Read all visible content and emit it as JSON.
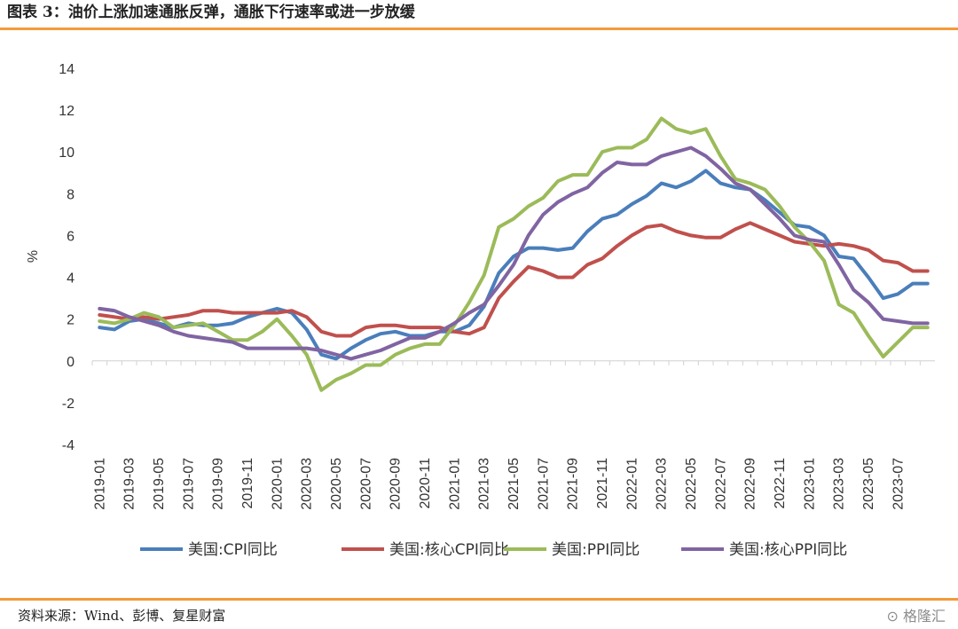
{
  "header": {
    "title": "图表 3：油价上涨加速通胀反弹，通胀下行速率或进一步放缓"
  },
  "footer": {
    "source": "资料来源：Wind、彭博、复星财富",
    "watermark": "格隆汇"
  },
  "chart_data": {
    "type": "line",
    "ylabel": "%",
    "ylim": [
      -4,
      14
    ],
    "yticks": [
      -4,
      -2,
      0,
      2,
      4,
      6,
      8,
      10,
      12,
      14
    ],
    "grid": false,
    "legend_position": "bottom",
    "x": [
      "2019-01",
      "2019-02",
      "2019-03",
      "2019-04",
      "2019-05",
      "2019-06",
      "2019-07",
      "2019-08",
      "2019-09",
      "2019-10",
      "2019-11",
      "2019-12",
      "2020-01",
      "2020-02",
      "2020-03",
      "2020-04",
      "2020-05",
      "2020-06",
      "2020-07",
      "2020-08",
      "2020-09",
      "2020-10",
      "2020-11",
      "2020-12",
      "2021-01",
      "2021-02",
      "2021-03",
      "2021-04",
      "2021-05",
      "2021-06",
      "2021-07",
      "2021-08",
      "2021-09",
      "2021-10",
      "2021-11",
      "2021-12",
      "2022-01",
      "2022-02",
      "2022-03",
      "2022-04",
      "2022-05",
      "2022-06",
      "2022-07",
      "2022-08",
      "2022-09",
      "2022-10",
      "2022-11",
      "2022-12",
      "2023-01",
      "2023-02",
      "2023-03",
      "2023-04",
      "2023-05",
      "2023-06",
      "2023-07",
      "2023-08",
      "2023-09"
    ],
    "x_tick_labels": [
      "2019-01",
      "2019-03",
      "2019-05",
      "2019-07",
      "2019-09",
      "2019-11",
      "2020-01",
      "2020-03",
      "2020-05",
      "2020-07",
      "2020-09",
      "2020-11",
      "2021-01",
      "2021-03",
      "2021-05",
      "2021-07",
      "2021-09",
      "2021-11",
      "2022-01",
      "2022-03",
      "2022-05",
      "2022-07",
      "2022-09",
      "2022-11",
      "2023-01",
      "2023-03",
      "2023-05",
      "2023-07"
    ],
    "series": [
      {
        "name": "美国:CPI同比",
        "color": "#4a7ebb",
        "values": [
          1.6,
          1.5,
          1.9,
          2.0,
          1.8,
          1.6,
          1.8,
          1.7,
          1.7,
          1.8,
          2.1,
          2.3,
          2.5,
          2.3,
          1.5,
          0.3,
          0.1,
          0.6,
          1.0,
          1.3,
          1.4,
          1.2,
          1.2,
          1.4,
          1.4,
          1.7,
          2.6,
          4.2,
          5.0,
          5.4,
          5.4,
          5.3,
          5.4,
          6.2,
          6.8,
          7.0,
          7.5,
          7.9,
          8.5,
          8.3,
          8.6,
          9.1,
          8.5,
          8.3,
          8.2,
          7.7,
          7.1,
          6.5,
          6.4,
          6.0,
          5.0,
          4.9,
          4.0,
          3.0,
          3.2,
          3.7,
          3.7
        ]
      },
      {
        "name": "美国:核心CPI同比",
        "color": "#c0504d",
        "values": [
          2.2,
          2.1,
          2.0,
          2.1,
          2.0,
          2.1,
          2.2,
          2.4,
          2.4,
          2.3,
          2.3,
          2.3,
          2.3,
          2.4,
          2.1,
          1.4,
          1.2,
          1.2,
          1.6,
          1.7,
          1.7,
          1.6,
          1.6,
          1.6,
          1.4,
          1.3,
          1.6,
          3.0,
          3.8,
          4.5,
          4.3,
          4.0,
          4.0,
          4.6,
          4.9,
          5.5,
          6.0,
          6.4,
          6.5,
          6.2,
          6.0,
          5.9,
          5.9,
          6.3,
          6.6,
          6.3,
          6.0,
          5.7,
          5.6,
          5.5,
          5.6,
          5.5,
          5.3,
          4.8,
          4.7,
          4.3,
          4.3
        ]
      },
      {
        "name": "美国:PPI同比",
        "color": "#9bbb59",
        "values": [
          1.9,
          1.8,
          2.0,
          2.3,
          2.1,
          1.6,
          1.7,
          1.8,
          1.4,
          1.0,
          1.0,
          1.4,
          2.0,
          1.2,
          0.3,
          -1.4,
          -0.9,
          -0.6,
          -0.2,
          -0.2,
          0.3,
          0.6,
          0.8,
          0.8,
          1.7,
          2.8,
          4.1,
          6.4,
          6.8,
          7.4,
          7.8,
          8.6,
          8.9,
          8.9,
          10.0,
          10.2,
          10.2,
          10.6,
          11.6,
          11.1,
          10.9,
          11.1,
          9.8,
          8.7,
          8.5,
          8.2,
          7.4,
          6.4,
          5.7,
          4.8,
          2.7,
          2.3,
          1.2,
          0.2,
          0.9,
          1.6,
          1.6
        ]
      },
      {
        "name": "美国:核心PPI同比",
        "color": "#8064a2",
        "values": [
          2.5,
          2.4,
          2.1,
          1.9,
          1.7,
          1.4,
          1.2,
          1.1,
          1.0,
          0.9,
          0.6,
          0.6,
          0.6,
          0.6,
          0.6,
          0.5,
          0.3,
          0.1,
          0.3,
          0.5,
          0.8,
          1.1,
          1.1,
          1.4,
          1.8,
          2.3,
          2.7,
          3.6,
          4.6,
          6.0,
          7.0,
          7.6,
          8.0,
          8.3,
          9.0,
          9.5,
          9.4,
          9.4,
          9.8,
          10.0,
          10.2,
          9.8,
          9.2,
          8.5,
          8.2,
          7.5,
          6.8,
          6.0,
          5.8,
          5.7,
          4.6,
          3.4,
          2.8,
          2.0,
          1.9,
          1.8,
          1.8
        ]
      }
    ]
  }
}
